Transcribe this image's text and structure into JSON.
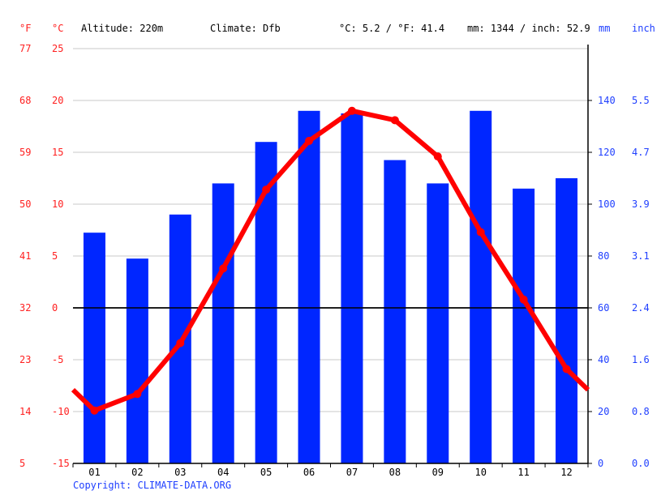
{
  "header": {
    "unit_f": "°F",
    "unit_c": "°C",
    "altitude": "Altitude: 220m",
    "climate": "Climate: Dfb",
    "avg_temp": "°C: 5.2 / °F: 41.4",
    "precip_total": "mm: 1344 / inch: 52.9",
    "unit_mm": "mm",
    "unit_inch": "inch"
  },
  "colors": {
    "temperature": "#ff0000",
    "precipitation": "#0026ff",
    "axis_temp": "#ff1f1f",
    "axis_precip": "#1f3fff",
    "grid": "#c8c8c8"
  },
  "copyright": "Copyright: CLIMATE-DATA.ORG",
  "chart_data": {
    "type": "bar+line",
    "title": "",
    "categories": [
      "01",
      "02",
      "03",
      "04",
      "05",
      "06",
      "07",
      "08",
      "09",
      "10",
      "11",
      "12"
    ],
    "series": [
      {
        "name": "Precipitation (mm)",
        "type": "bar",
        "axis": "right",
        "values": [
          89,
          79,
          96,
          108,
          124,
          136,
          135,
          117,
          108,
          136,
          106,
          110
        ]
      },
      {
        "name": "Temperature (°C)",
        "type": "line",
        "axis": "left",
        "values": [
          -9.9,
          -8.3,
          -3.4,
          3.8,
          11.4,
          16.1,
          19.0,
          18.1,
          14.6,
          7.3,
          0.8,
          -5.9
        ]
      }
    ],
    "left_axis_c": {
      "ticks": [
        25,
        20,
        15,
        10,
        5,
        0,
        -5,
        -10,
        -15
      ],
      "range": [
        -15,
        25
      ]
    },
    "left_axis_f": {
      "ticks": [
        77,
        68,
        59,
        50,
        41,
        32,
        23,
        14,
        5
      ]
    },
    "right_axis_mm": {
      "ticks": [
        140,
        120,
        100,
        80,
        60,
        40,
        20,
        0
      ],
      "range": [
        0,
        160
      ]
    },
    "right_axis_inch": {
      "ticks": [
        "5.5",
        "4.7",
        "3.9",
        "3.1",
        "2.4",
        "1.6",
        "0.8",
        "0.0"
      ]
    },
    "xlabel": "",
    "ylabel_left": "°C / °F",
    "ylabel_right": "mm / inch",
    "grid": true,
    "legend": "none"
  }
}
